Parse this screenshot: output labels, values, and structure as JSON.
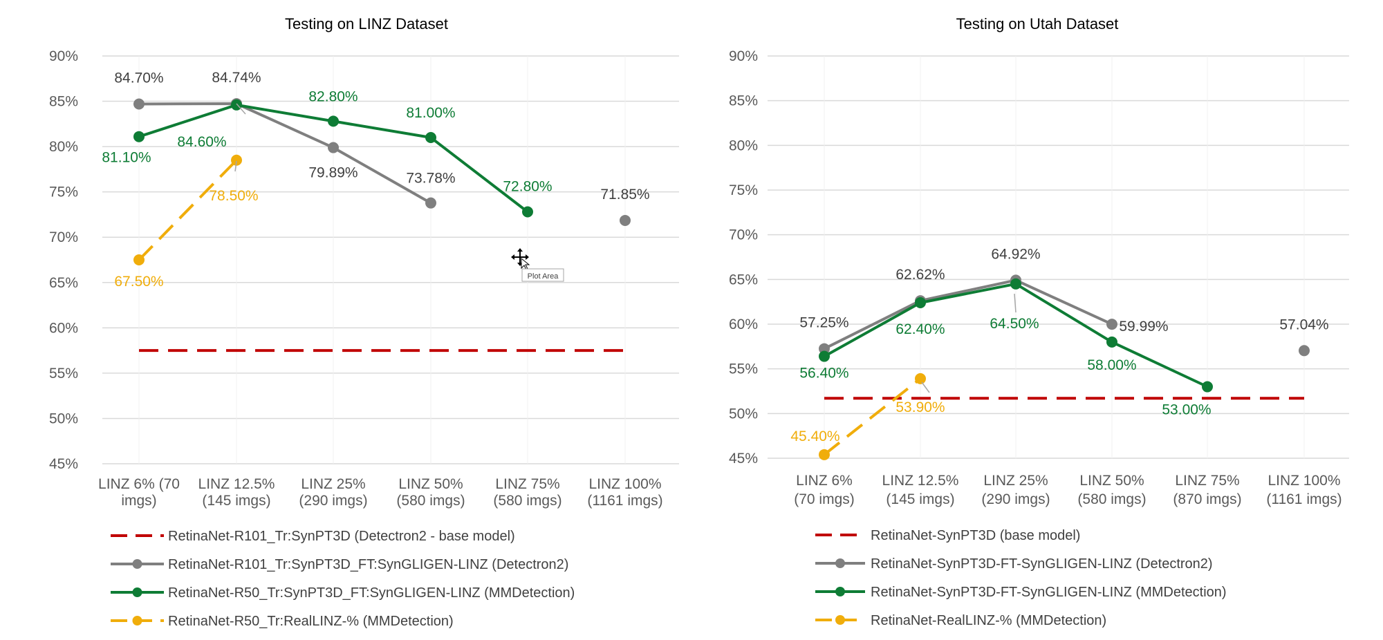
{
  "chart_data": [
    {
      "type": "line",
      "title": "Testing on LINZ Dataset",
      "ylim": [
        45,
        90
      ],
      "ytick_labels": [
        "45%",
        "50%",
        "55%",
        "60%",
        "65%",
        "70%",
        "75%",
        "80%",
        "85%",
        "90%"
      ],
      "categories": [
        [
          "LINZ 6% (70",
          "imgs)"
        ],
        [
          "LINZ 12.5%",
          "(145 imgs)"
        ],
        [
          "LINZ  25%",
          "(290 imgs)"
        ],
        [
          "LINZ  50%",
          "(580 imgs)"
        ],
        [
          "LINZ  75%",
          "(580 imgs)"
        ],
        [
          "LINZ 100%",
          "(1161 imgs)"
        ]
      ],
      "grid": "horizontal",
      "legend_position": "bottom",
      "series": [
        {
          "name": "RetinaNet-R101_Tr:SynPT3D (Detectron2 - base model)",
          "style": "dashed",
          "markers": false,
          "color": "#c00000",
          "values": [
            57.5,
            57.5,
            57.5,
            57.5,
            57.5,
            57.5
          ],
          "labels": [
            null,
            null,
            null,
            null,
            null,
            null
          ]
        },
        {
          "name": "RetinaNet-R101_Tr:SynPT3D_FT:SynGLIGEN-LINZ (Detectron2)",
          "style": "solid",
          "markers": true,
          "color": "#7f7f7f",
          "values": [
            84.7,
            84.74,
            79.89,
            73.78,
            null,
            71.85
          ],
          "labels": [
            "84.70%",
            "84.74%",
            "79.89%",
            "73.78%",
            null,
            "71.85%"
          ]
        },
        {
          "name": "RetinaNet-R50_Tr:SynPT3D_FT:SynGLIGEN-LINZ (MMDetection)",
          "style": "solid",
          "markers": true,
          "color": "#0e7c35",
          "values": [
            81.1,
            84.6,
            82.8,
            81.0,
            72.8,
            null
          ],
          "labels": [
            "81.10%",
            "84.60%",
            "82.80%",
            "81.00%",
            "72.80%",
            null
          ]
        },
        {
          "name": "RetinaNet-R50_Tr:RealLINZ-% (MMDetection)",
          "style": "dashed",
          "markers": true,
          "color": "#f0ad0b",
          "values": [
            67.5,
            78.5,
            null,
            null,
            null,
            null
          ],
          "labels": [
            "67.50%",
            "78.50%",
            null,
            null,
            null,
            null
          ]
        }
      ],
      "tooltip": "Plot Area"
    },
    {
      "type": "line",
      "title": "Testing on Utah Dataset",
      "ylim": [
        45,
        90
      ],
      "ytick_labels": [
        "45%",
        "50%",
        "55%",
        "60%",
        "65%",
        "70%",
        "75%",
        "80%",
        "85%",
        "90%"
      ],
      "categories": [
        [
          "LINZ 6%",
          "(70 imgs)"
        ],
        [
          "LINZ 12.5%",
          "(145 imgs)"
        ],
        [
          "LINZ  25%",
          "(290 imgs)"
        ],
        [
          "LINZ  50%",
          "(580 imgs)"
        ],
        [
          "LINZ  75%",
          "(870 imgs)"
        ],
        [
          "LINZ 100%",
          "(1161 imgs)"
        ]
      ],
      "grid": "horizontal",
      "legend_position": "bottom",
      "series": [
        {
          "name": "RetinaNet-SynPT3D (base model)",
          "style": "dashed",
          "markers": false,
          "color": "#c00000",
          "values": [
            51.7,
            51.7,
            51.7,
            51.7,
            51.7,
            51.7
          ],
          "labels": [
            null,
            null,
            null,
            null,
            null,
            null
          ]
        },
        {
          "name": "RetinaNet-SynPT3D-FT-SynGLIGEN-LINZ (Detectron2)",
          "style": "solid",
          "markers": true,
          "color": "#7f7f7f",
          "values": [
            57.25,
            62.62,
            64.92,
            59.99,
            null,
            57.04
          ],
          "labels": [
            "57.25%",
            "62.62%",
            "64.92%",
            "59.99%",
            null,
            "57.04%"
          ]
        },
        {
          "name": "RetinaNet-SynPT3D-FT-SynGLIGEN-LINZ (MMDetection)",
          "style": "solid",
          "markers": true,
          "color": "#0e7c35",
          "values": [
            56.4,
            62.4,
            64.5,
            58.0,
            53.0,
            null
          ],
          "labels": [
            "56.40%",
            "62.40%",
            "64.50%",
            "58.00%",
            "53.00%",
            null
          ]
        },
        {
          "name": "RetinaNet-RealLINZ-% (MMDetection)",
          "style": "dashed",
          "markers": true,
          "color": "#f0ad0b",
          "values": [
            45.4,
            53.9,
            null,
            null,
            null,
            null
          ],
          "labels": [
            "45.40%",
            "53.90%",
            null,
            null,
            null,
            null
          ]
        }
      ]
    }
  ]
}
